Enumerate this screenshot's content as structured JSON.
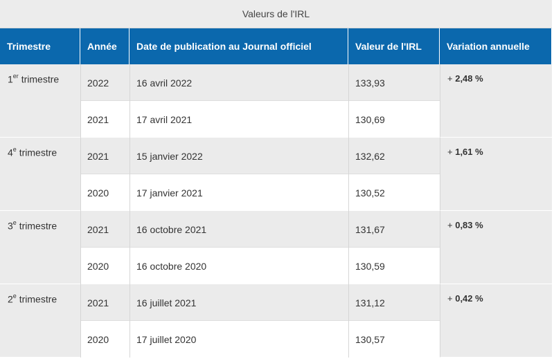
{
  "table": {
    "caption": "Valeurs de l'IRL",
    "headers": [
      "Trimestre",
      "Année",
      "Date de publication au Journal officiel",
      "Valeur de l'IRL",
      "Variation annuelle"
    ],
    "groups": [
      {
        "trim_num": "1",
        "trim_sup": "er",
        "trim_label": " trimestre",
        "variation_sign": "+ ",
        "variation_value": "2,48 %",
        "rows": [
          {
            "annee": "2022",
            "date": "16 avril 2022",
            "valeur": "133,93"
          },
          {
            "annee": "2021",
            "date": "17 avril 2021",
            "valeur": "130,69"
          }
        ]
      },
      {
        "trim_num": "4",
        "trim_sup": "e",
        "trim_label": " trimestre",
        "variation_sign": "+ ",
        "variation_value": "1,61 %",
        "rows": [
          {
            "annee": "2021",
            "date": "15 janvier 2022",
            "valeur": "132,62"
          },
          {
            "annee": "2020",
            "date": "17 janvier 2021",
            "valeur": "130,52"
          }
        ]
      },
      {
        "trim_num": "3",
        "trim_sup": "e",
        "trim_label": " trimestre",
        "variation_sign": "+ ",
        "variation_value": "0,83 %",
        "rows": [
          {
            "annee": "2021",
            "date": "16 octobre 2021",
            "valeur": "131,67"
          },
          {
            "annee": "2020",
            "date": "16 octobre 2020",
            "valeur": "130,59"
          }
        ]
      },
      {
        "trim_num": "2",
        "trim_sup": "e",
        "trim_label": " trimestre",
        "variation_sign": "+ ",
        "variation_value": "0,42 %",
        "rows": [
          {
            "annee": "2021",
            "date": "16 juillet 2021",
            "valeur": "131,12"
          },
          {
            "annee": "2020",
            "date": "17 juillet 2020",
            "valeur": "130,57"
          }
        ]
      }
    ]
  },
  "colors": {
    "header_bg": "#0b68ad",
    "header_text": "#ffffff",
    "caption_bg": "#ececec",
    "row_grey": "#ebebeb",
    "row_white": "#ffffff"
  }
}
